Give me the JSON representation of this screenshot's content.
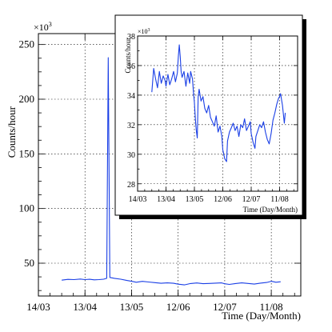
{
  "chart_data": [
    {
      "type": "line",
      "exponent_label": "×10",
      "exponent_power": "3",
      "ylabel": "Counts/hour",
      "xlabel": "Time (Day/Month)",
      "ylim": [
        20,
        260
      ],
      "xlim": [
        "14/03",
        "30/08"
      ],
      "grid": true,
      "y_ticks": [
        {
          "value": 50,
          "label": "50"
        },
        {
          "value": 100,
          "label": "100"
        },
        {
          "value": 150,
          "label": "150"
        },
        {
          "value": 200,
          "label": "200"
        },
        {
          "value": 250,
          "label": "250"
        }
      ],
      "x_ticks": [
        {
          "value": "14/03",
          "label": "14/03"
        },
        {
          "value": "13/04",
          "label": "13/04"
        },
        {
          "value": "13/05",
          "label": "13/05"
        },
        {
          "value": "12/06",
          "label": "12/06"
        },
        {
          "value": "12/07",
          "label": "12/07"
        },
        {
          "value": "11/08",
          "label": "11/08"
        }
      ],
      "series": [
        {
          "color": "#1a3fe6",
          "x": [
            "29/03",
            "02/04",
            "06/04",
            "10/04",
            "13/04",
            "16/04",
            "19/04",
            "22/04",
            "25/04",
            "27/04",
            "28/04",
            "29/04",
            "02/05",
            "06/05",
            "10/05",
            "13/05",
            "16/05",
            "20/05",
            "24/05",
            "28/05",
            "01/06",
            "05/06",
            "09/06",
            "12/06",
            "16/06",
            "20/06",
            "24/06",
            "28/06",
            "02/07",
            "06/07",
            "10/07",
            "12/07",
            "15/07",
            "19/07",
            "23/07",
            "27/07",
            "31/07",
            "04/08",
            "08/08",
            "11/08",
            "14/08",
            "17/08"
          ],
          "values": [
            34.5,
            35.2,
            35.0,
            35.5,
            35.0,
            35.3,
            34.8,
            35.0,
            35.4,
            36.2,
            238,
            37.0,
            36.2,
            35.4,
            34.2,
            33.5,
            32.6,
            33.4,
            32.8,
            32.2,
            31.6,
            32.0,
            31.6,
            30.8,
            30.2,
            31.4,
            31.9,
            31.3,
            31.5,
            31.8,
            32.0,
            31.2,
            30.6,
            31.4,
            32.0,
            31.5,
            30.9,
            31.8,
            32.4,
            33.5,
            32.6,
            33.0
          ]
        }
      ]
    },
    {
      "type": "line",
      "exponent_label": "×10",
      "exponent_power": "3",
      "ylabel": "Counts/hour",
      "xlabel": "Time (Day/Month)",
      "ylim": [
        27.5,
        38
      ],
      "xlim": [
        "14/03",
        "30/08"
      ],
      "grid": true,
      "y_ticks": [
        {
          "value": 28,
          "label": "28"
        },
        {
          "value": 30,
          "label": "30"
        },
        {
          "value": 32,
          "label": "32"
        },
        {
          "value": 34,
          "label": "34"
        },
        {
          "value": 36,
          "label": "36"
        },
        {
          "value": 38,
          "label": "38"
        }
      ],
      "x_ticks": [
        {
          "value": "14/03",
          "label": "14/03"
        },
        {
          "value": "13/04",
          "label": "13/04"
        },
        {
          "value": "13/05",
          "label": "13/05"
        },
        {
          "value": "12/06",
          "label": "12/06"
        },
        {
          "value": "12/07",
          "label": "12/07"
        },
        {
          "value": "11/08",
          "label": "11/08"
        }
      ],
      "series": [
        {
          "color": "#1a3fe6",
          "x": [
            "29/03",
            "31/03",
            "02/04",
            "04/04",
            "06/04",
            "08/04",
            "10/04",
            "12/04",
            "13/04",
            "15/04",
            "17/04",
            "19/04",
            "21/04",
            "23/04",
            "25/04",
            "26/04",
            "27/04",
            "28/04",
            "29/04",
            "30/04",
            "02/05",
            "04/05",
            "06/05",
            "08/05",
            "09/05",
            "11/05",
            "12/05",
            "13/05",
            "14/05",
            "15/05",
            "16/05",
            "17/05",
            "18/05",
            "20/05",
            "22/05",
            "24/05",
            "26/05",
            "28/05",
            "30/05",
            "01/06",
            "03/06",
            "05/06",
            "07/06",
            "09/06",
            "11/06",
            "12/06",
            "14/06",
            "16/06",
            "17/06",
            "19/06",
            "21/06",
            "23/06",
            "25/06",
            "27/06",
            "29/06",
            "01/07",
            "03/07",
            "05/07",
            "07/07",
            "09/07",
            "11/07",
            "12/07",
            "14/07",
            "16/07",
            "17/07",
            "19/07",
            "21/07",
            "23/07",
            "25/07",
            "27/07",
            "29/07",
            "31/07",
            "02/08",
            "04/08",
            "06/08",
            "08/08",
            "10/08",
            "11/08",
            "12/08",
            "14/08",
            "16/08",
            "17/08"
          ],
          "values": [
            34.2,
            35.8,
            35.1,
            34.5,
            35.6,
            34.8,
            35.3,
            35.0,
            34.6,
            35.4,
            34.7,
            35.1,
            35.6,
            34.9,
            35.5,
            36.6,
            37.4,
            36.6,
            35.6,
            35.2,
            35.6,
            34.6,
            35.5,
            34.8,
            35.6,
            35.1,
            34.2,
            33.5,
            32.4,
            31.6,
            31.1,
            33.9,
            34.4,
            33.6,
            33.9,
            33.1,
            32.8,
            33.3,
            32.5,
            32.2,
            31.9,
            32.6,
            31.5,
            31.9,
            31.2,
            30.3,
            29.7,
            29.5,
            30.9,
            31.5,
            31.8,
            32.1,
            31.6,
            31.9,
            31.2,
            32.0,
            31.8,
            32.4,
            31.6,
            31.9,
            32.2,
            31.4,
            30.8,
            30.4,
            31.2,
            31.6,
            32.0,
            31.8,
            32.2,
            31.5,
            31.0,
            30.7,
            31.4,
            32.3,
            32.8,
            33.4,
            33.8,
            33.9,
            34.1,
            33.3,
            32.1,
            32.8
          ]
        }
      ]
    }
  ]
}
